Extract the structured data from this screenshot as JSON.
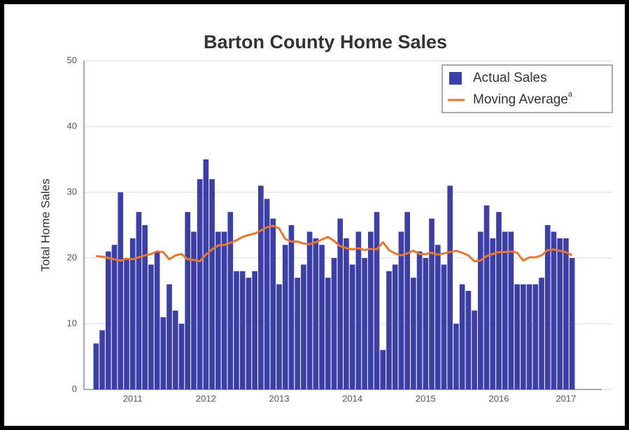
{
  "chart_data": {
    "type": "bar",
    "title": "Barton County Home Sales",
    "y_label": "Total Home Sales",
    "ylim": [
      0,
      50
    ],
    "yticks": [
      0,
      10,
      20,
      30,
      40,
      50
    ],
    "grid": true,
    "legend": "top-right",
    "legend_note": "a",
    "categories": [
      null,
      null,
      null,
      null,
      null,
      null,
      "2011",
      null,
      null,
      null,
      null,
      null,
      null,
      null,
      null,
      null,
      null,
      null,
      "2012",
      null,
      null,
      null,
      null,
      null,
      null,
      null,
      null,
      null,
      null,
      null,
      "2013",
      null,
      null,
      null,
      null,
      null,
      null,
      null,
      null,
      null,
      null,
      null,
      "2014",
      null,
      null,
      null,
      null,
      null,
      null,
      null,
      null,
      null,
      null,
      null,
      "2015",
      null,
      null,
      null,
      null,
      null,
      null,
      null,
      null,
      null,
      null,
      null,
      "2016",
      null,
      null,
      null,
      null,
      null,
      null,
      null,
      null,
      null,
      null,
      "2017",
      null
    ],
    "series": [
      {
        "name": "Actual Sales",
        "type": "bar",
        "color": "#3c3fa8",
        "values": [
          7,
          9,
          21,
          22,
          30,
          20,
          23,
          27,
          25,
          19,
          21,
          11,
          16,
          12,
          10,
          27,
          24,
          32,
          35,
          32,
          24,
          24,
          27,
          18,
          18,
          17,
          18,
          31,
          29,
          26,
          16,
          22,
          25,
          17,
          19,
          24,
          23,
          22,
          17,
          20,
          26,
          23,
          19,
          24,
          20,
          24,
          27,
          6,
          18,
          19,
          24,
          27,
          17,
          21,
          20,
          26,
          22,
          19,
          31,
          10,
          16,
          15,
          12,
          24,
          28,
          23,
          27,
          24,
          24,
          16,
          16,
          16,
          16,
          17,
          25,
          24,
          23,
          23,
          20
        ]
      },
      {
        "name": "Moving Average",
        "type": "line",
        "color": "#e8772e",
        "values": [
          20.3,
          20.2,
          20,
          19.8,
          19.6,
          19.9,
          19.8,
          20.1,
          20.4,
          20.6,
          21,
          20.9,
          19.8,
          20.4,
          20.6,
          19.8,
          19.7,
          19.5,
          20.5,
          21.3,
          21.9,
          22,
          22.3,
          22.7,
          23.2,
          23.5,
          23.7,
          24.2,
          24.7,
          24.9,
          24.5,
          22.9,
          22.5,
          22.5,
          22.2,
          22.1,
          22.4,
          22.8,
          23.2,
          22.6,
          21.8,
          21.5,
          21.3,
          21.5,
          21.2,
          21.4,
          21.3,
          22.4,
          21.2,
          20.7,
          20.4,
          20.7,
          21.1,
          20.6,
          20.6,
          20.8,
          20.5,
          20.7,
          20.9,
          21.1,
          20.8,
          20.4,
          19.5,
          19.6,
          20.3,
          20.6,
          20.9,
          20.9,
          21,
          20.8,
          19.6,
          20.1,
          20.1,
          20.4,
          21.2,
          21.3,
          21.1,
          20.9,
          20.4
        ]
      }
    ]
  }
}
